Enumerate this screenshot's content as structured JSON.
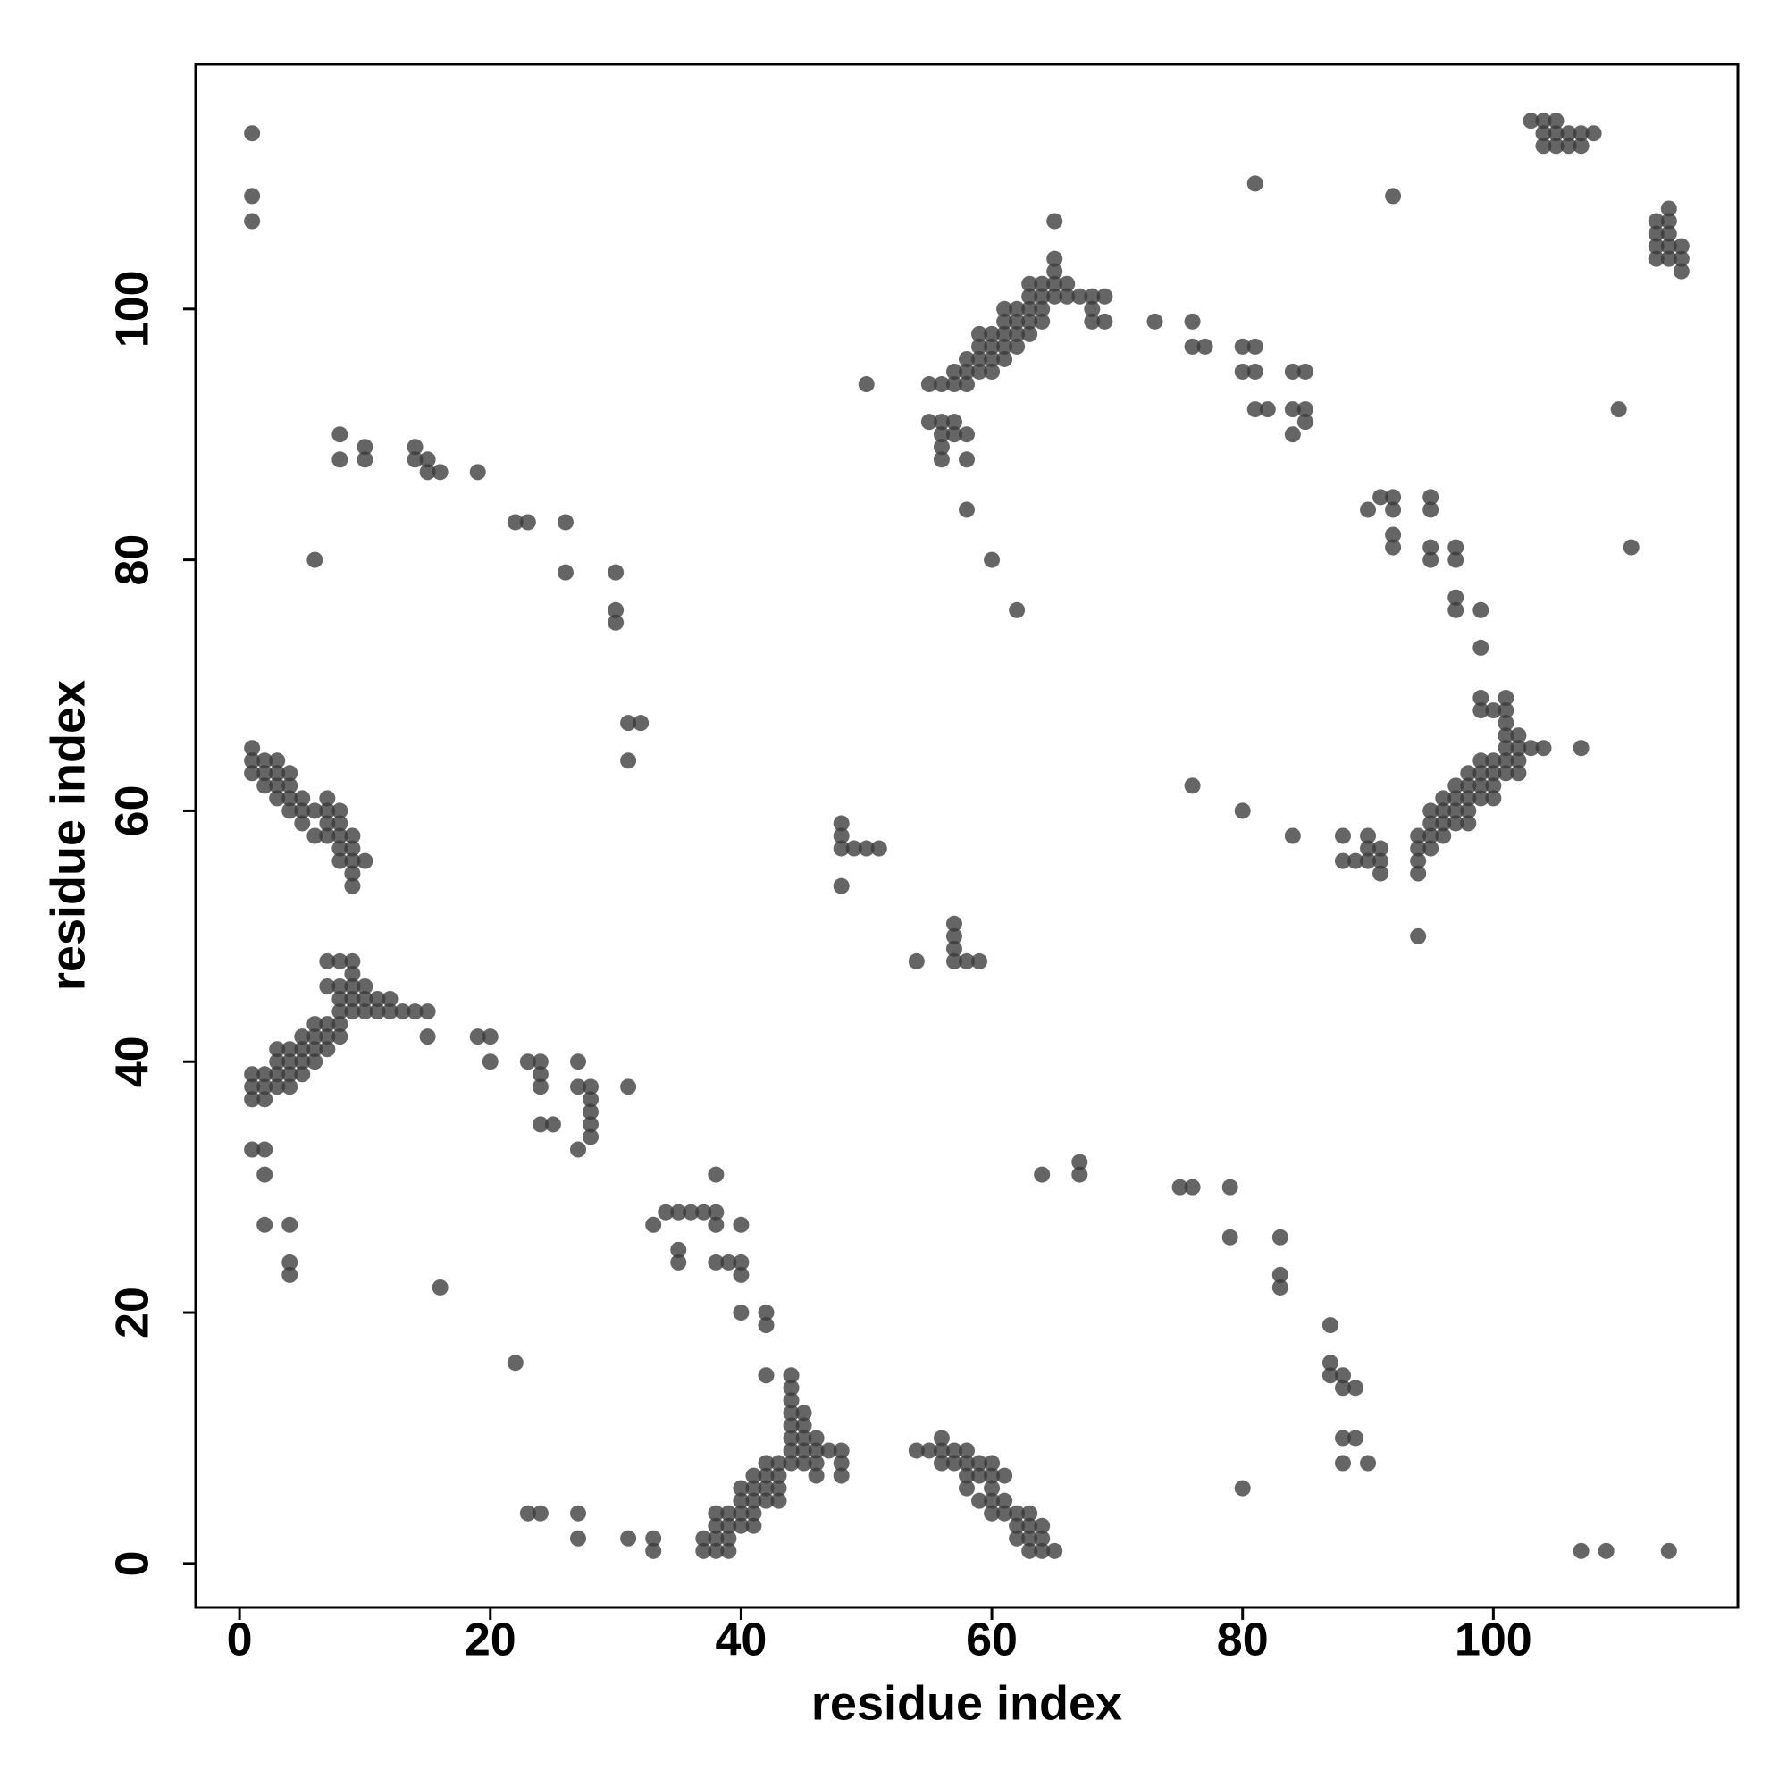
{
  "chart_data": {
    "type": "scatter",
    "x_label": "residue index",
    "y_label": "residue index",
    "xlim": [
      -3.5,
      119.5
    ],
    "ylim": [
      -3.5,
      119.5
    ],
    "xticks": [
      0,
      20,
      40,
      60,
      80,
      100
    ],
    "yticks": [
      0,
      20,
      40,
      60,
      80,
      100
    ],
    "color": "#3a3a3a",
    "x": [
      1,
      1,
      1,
      8,
      8,
      10,
      10,
      14,
      14,
      15,
      15,
      16,
      19,
      6,
      22,
      23,
      26,
      26,
      30,
      30,
      30,
      31,
      32,
      31,
      1,
      1,
      1,
      2,
      2,
      2,
      3,
      3,
      3,
      3,
      4,
      4,
      4,
      4,
      5,
      5,
      5,
      6,
      6,
      7,
      7,
      7,
      7,
      8,
      8,
      8,
      8,
      8,
      9,
      9,
      9,
      9,
      9,
      10,
      1,
      1,
      1,
      2,
      2,
      2,
      3,
      3,
      3,
      3,
      4,
      4,
      4,
      4,
      5,
      5,
      5,
      5,
      6,
      6,
      6,
      6,
      7,
      7,
      7,
      7,
      7,
      8,
      8,
      8,
      8,
      8,
      8,
      9,
      9,
      9,
      9,
      9,
      10,
      10,
      10,
      11,
      11,
      12,
      12,
      13,
      14,
      15,
      15,
      19,
      20,
      20,
      23,
      24,
      24,
      24,
      24,
      25,
      27,
      27,
      27,
      28,
      28,
      28,
      28,
      28,
      31,
      1,
      2,
      2,
      2,
      4,
      4,
      4,
      16,
      22,
      23,
      24,
      27,
      27,
      31,
      33,
      33,
      33,
      34,
      35,
      35,
      35,
      36,
      37,
      38,
      38,
      38,
      38,
      39,
      40,
      40,
      40,
      40,
      42,
      42,
      42,
      37,
      37,
      38,
      38,
      38,
      38,
      39,
      39,
      39,
      39,
      40,
      40,
      40,
      40,
      41,
      41,
      41,
      41,
      41,
      42,
      42,
      42,
      42,
      43,
      43,
      43,
      43,
      44,
      44,
      44,
      44,
      44,
      44,
      44,
      44,
      45,
      45,
      45,
      45,
      45,
      46,
      46,
      46,
      46,
      47,
      48,
      48,
      48,
      54,
      55,
      56,
      56,
      56,
      57,
      57,
      58,
      58,
      58,
      58,
      59,
      59,
      59,
      60,
      60,
      60,
      60,
      60,
      61,
      61,
      61,
      62,
      62,
      62,
      63,
      63,
      63,
      63,
      64,
      64,
      64,
      65,
      48,
      48,
      48,
      48,
      49,
      50,
      51,
      54,
      57,
      57,
      57,
      57,
      58,
      59,
      50,
      55,
      55,
      56,
      56,
      56,
      56,
      56,
      57,
      57,
      57,
      57,
      58,
      58,
      58,
      58,
      58,
      58,
      59,
      59,
      59,
      59,
      60,
      60,
      60,
      60,
      60,
      61,
      61,
      61,
      61,
      61,
      62,
      62,
      62,
      62,
      62,
      63,
      63,
      63,
      63,
      63,
      64,
      64,
      64,
      64,
      65,
      65,
      65,
      65,
      65,
      66,
      66,
      67,
      68,
      68,
      68,
      69,
      69,
      73,
      76,
      76,
      77,
      80,
      80,
      81,
      81,
      81,
      82,
      84,
      84,
      84,
      85,
      85,
      85,
      81,
      92,
      90,
      91,
      92,
      92,
      92,
      92,
      95,
      95,
      95,
      95,
      97,
      97,
      97,
      97,
      99,
      99,
      94,
      94,
      94,
      94,
      95,
      95,
      95,
      95,
      96,
      96,
      96,
      96,
      97,
      97,
      97,
      97,
      98,
      98,
      98,
      98,
      98,
      99,
      99,
      99,
      99,
      99,
      99,
      100,
      100,
      100,
      100,
      100,
      101,
      101,
      101,
      101,
      101,
      101,
      101,
      102,
      102,
      102,
      102,
      103,
      104,
      107,
      88,
      88,
      89,
      90,
      90,
      90,
      91,
      91,
      91,
      94,
      76,
      80,
      84,
      103,
      104,
      104,
      104,
      105,
      105,
      105,
      106,
      106,
      107,
      107,
      108,
      113,
      113,
      113,
      113,
      114,
      114,
      114,
      114,
      114,
      115,
      115,
      115,
      110,
      111,
      64,
      67,
      67,
      75,
      76,
      79,
      79,
      83,
      83,
      83,
      87,
      87,
      87,
      88,
      88,
      88,
      88,
      89,
      89,
      90,
      80,
      107,
      109,
      114
    ],
    "y": [
      114,
      109,
      107,
      90,
      88,
      89,
      88,
      89,
      88,
      88,
      87,
      87,
      87,
      80,
      83,
      83,
      83,
      79,
      79,
      76,
      75,
      67,
      67,
      64,
      65,
      64,
      63,
      64,
      63,
      62,
      64,
      63,
      62,
      61,
      63,
      62,
      61,
      60,
      61,
      60,
      59,
      60,
      58,
      61,
      60,
      59,
      58,
      60,
      59,
      58,
      57,
      56,
      58,
      57,
      56,
      55,
      54,
      56,
      39,
      38,
      37,
      39,
      38,
      37,
      41,
      40,
      39,
      38,
      41,
      40,
      39,
      38,
      42,
      41,
      40,
      39,
      43,
      42,
      41,
      40,
      48,
      46,
      43,
      42,
      41,
      48,
      46,
      45,
      44,
      43,
      42,
      48,
      47,
      46,
      45,
      44,
      46,
      45,
      44,
      45,
      44,
      45,
      44,
      44,
      44,
      44,
      42,
      42,
      42,
      40,
      40,
      40,
      39,
      38,
      35,
      35,
      40,
      38,
      33,
      38,
      37,
      36,
      35,
      34,
      38,
      33,
      33,
      31,
      27,
      27,
      24,
      23,
      22,
      16,
      4,
      4,
      4,
      2,
      2,
      2,
      1,
      27,
      28,
      28,
      25,
      24,
      28,
      28,
      31,
      28,
      27,
      24,
      24,
      27,
      24,
      23,
      20,
      20,
      19,
      15,
      2,
      1,
      4,
      3,
      2,
      1,
      4,
      3,
      2,
      1,
      6,
      5,
      4,
      3,
      7,
      6,
      5,
      4,
      3,
      8,
      7,
      6,
      5,
      8,
      7,
      6,
      5,
      15,
      14,
      13,
      12,
      11,
      10,
      9,
      8,
      12,
      11,
      10,
      9,
      8,
      10,
      9,
      8,
      7,
      9,
      9,
      8,
      7,
      9,
      9,
      10,
      9,
      8,
      9,
      8,
      9,
      8,
      7,
      6,
      8,
      7,
      5,
      8,
      7,
      6,
      5,
      4,
      7,
      5,
      4,
      4,
      3,
      2,
      4,
      3,
      2,
      1,
      3,
      2,
      1,
      1,
      59,
      58,
      57,
      54,
      57,
      57,
      57,
      48,
      51,
      50,
      49,
      48,
      48,
      48,
      94,
      94,
      91,
      94,
      91,
      90,
      89,
      88,
      95,
      94,
      91,
      90,
      96,
      95,
      94,
      90,
      88,
      84,
      98,
      97,
      96,
      95,
      98,
      97,
      96,
      95,
      80,
      100,
      99,
      98,
      97,
      96,
      100,
      99,
      98,
      97,
      76,
      102,
      101,
      100,
      99,
      98,
      102,
      101,
      100,
      99,
      107,
      104,
      103,
      102,
      101,
      102,
      101,
      101,
      101,
      100,
      99,
      101,
      99,
      99,
      99,
      97,
      97,
      97,
      95,
      97,
      95,
      92,
      92,
      95,
      92,
      90,
      95,
      92,
      91,
      110,
      109,
      84,
      85,
      85,
      84,
      82,
      81,
      85,
      84,
      81,
      80,
      81,
      80,
      77,
      76,
      76,
      73,
      58,
      57,
      56,
      55,
      60,
      59,
      58,
      57,
      61,
      60,
      59,
      58,
      62,
      61,
      60,
      59,
      63,
      62,
      61,
      60,
      59,
      69,
      68,
      64,
      63,
      62,
      61,
      68,
      64,
      63,
      62,
      61,
      69,
      68,
      67,
      66,
      65,
      64,
      63,
      66,
      65,
      64,
      63,
      65,
      65,
      65,
      58,
      56,
      56,
      58,
      57,
      56,
      57,
      56,
      55,
      50,
      62,
      60,
      58,
      115,
      115,
      114,
      113,
      115,
      114,
      113,
      114,
      113,
      114,
      113,
      114,
      107,
      106,
      105,
      104,
      108,
      107,
      106,
      105,
      104,
      105,
      104,
      103,
      92,
      81,
      31,
      32,
      31,
      30,
      30,
      30,
      26,
      26,
      23,
      22,
      19,
      16,
      15,
      15,
      14,
      10,
      8,
      14,
      10,
      8,
      6,
      1,
      1,
      1
    ]
  }
}
